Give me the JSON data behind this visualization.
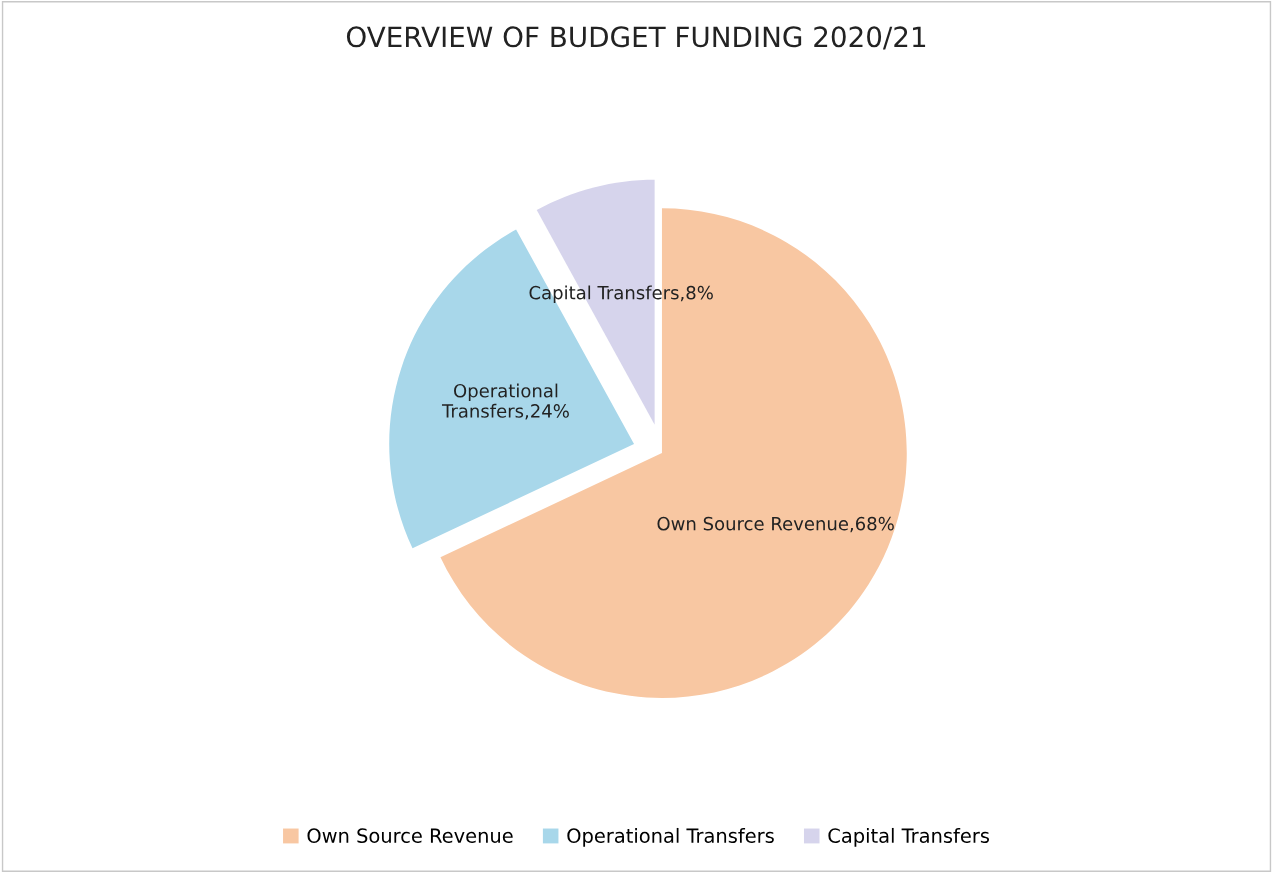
{
  "chart_data": {
    "type": "pie",
    "title": "OVERVIEW OF BUDGET FUNDING 2020/21",
    "categories": [
      "Own Source Revenue",
      "Operational Transfers",
      "Capital Transfers"
    ],
    "values": [
      68,
      24,
      8
    ],
    "colors": [
      "#f8c7a2",
      "#a8d7ea",
      "#d6d4ec"
    ],
    "value_labels": [
      "Own Source Revenue,68%",
      "Operational\nTransfers,24%",
      "Capital Transfers,8%"
    ],
    "legend": "bottom"
  }
}
